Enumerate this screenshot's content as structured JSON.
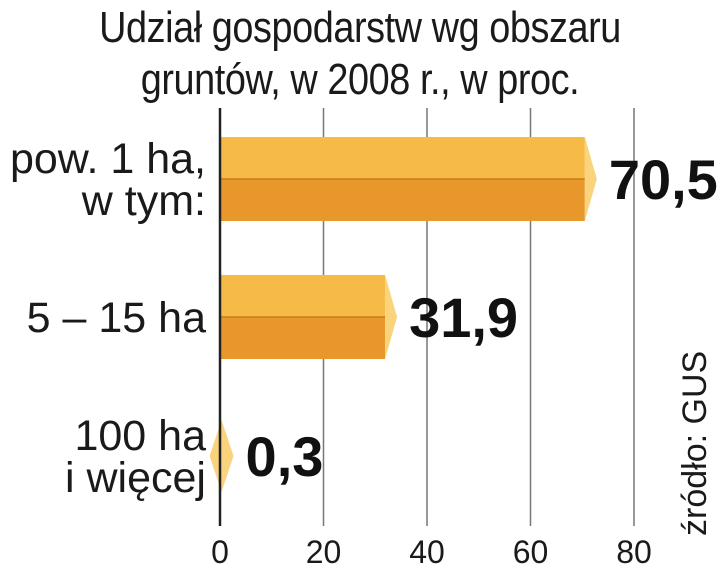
{
  "chart_data": {
    "type": "bar",
    "orientation": "horizontal",
    "title_lines": [
      "Udział gospodarstw wg obszaru",
      "gruntów, w 2008 r., w proc."
    ],
    "categories": [
      [
        "pow. 1 ha,",
        "w tym:"
      ],
      [
        "5 – 15 ha"
      ],
      [
        "100 ha",
        "i więcej"
      ]
    ],
    "values": [
      70.5,
      31.9,
      0.3
    ],
    "value_labels": [
      "70,5",
      "31,9",
      "0,3"
    ],
    "xlim": [
      0,
      80
    ],
    "xticks": [
      0,
      20,
      40,
      60,
      80
    ],
    "grid": true,
    "source": "źródło: GUS",
    "colors": {
      "bar_top": "#f5bb46",
      "bar_bottom": "#e8982a",
      "bar_cap": "#fad47c",
      "grid": "#777777",
      "axis": "#222222"
    }
  }
}
